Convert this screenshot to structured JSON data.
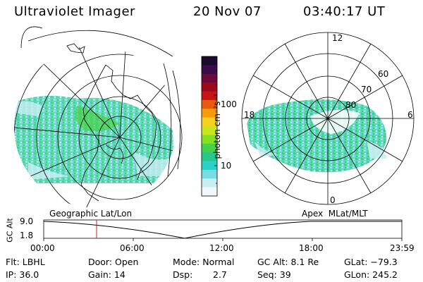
{
  "header": {
    "instrument": "Ultraviolet Imager",
    "date": "20 Nov 07",
    "time": "03:40:17 UT"
  },
  "colorbar": {
    "unit_label": "photon cm⁻²s⁻¹",
    "ticks": [
      "100",
      "10"
    ],
    "colors": [
      "#1a0a2e",
      "#3b0a4a",
      "#6a0a3a",
      "#9a0a1a",
      "#c81414",
      "#e85a10",
      "#f59a0a",
      "#f2d21e",
      "#c8e61e",
      "#86e01e",
      "#46d246",
      "#28c88c",
      "#28d2c8",
      "#78dce6",
      "#c8eef2",
      "#f0f8fa"
    ]
  },
  "left_map": {
    "caption": "Geographic Lat/Lon"
  },
  "right_map": {
    "caption": "Apex  MLat/MLT",
    "mlt_labels": {
      "top": "12",
      "right": "6",
      "bottom": "0",
      "left": "18"
    },
    "lat_labels": [
      "60",
      "70",
      "80"
    ]
  },
  "altitude_plot": {
    "ylabel": "GC Alt",
    "yticks": [
      "9.0",
      "1.8"
    ],
    "xticks": [
      "00:00",
      "06:00",
      "12:00",
      "18:00",
      "23:59"
    ],
    "marker_time": "03:40"
  },
  "info": {
    "filter": "Flt: LBHL",
    "ip": "IP: 36.0",
    "door": "Door: Open",
    "gain": "Gain: 14",
    "mode": "Mode: Normal",
    "dsp_label": "Dsp:",
    "dsp_value": "2.7",
    "gc_alt": "GC Alt: 8.1 Re",
    "seq": "Seq: 39",
    "glat": "GLat: −79.3",
    "glon": "GLon: 245.2"
  }
}
